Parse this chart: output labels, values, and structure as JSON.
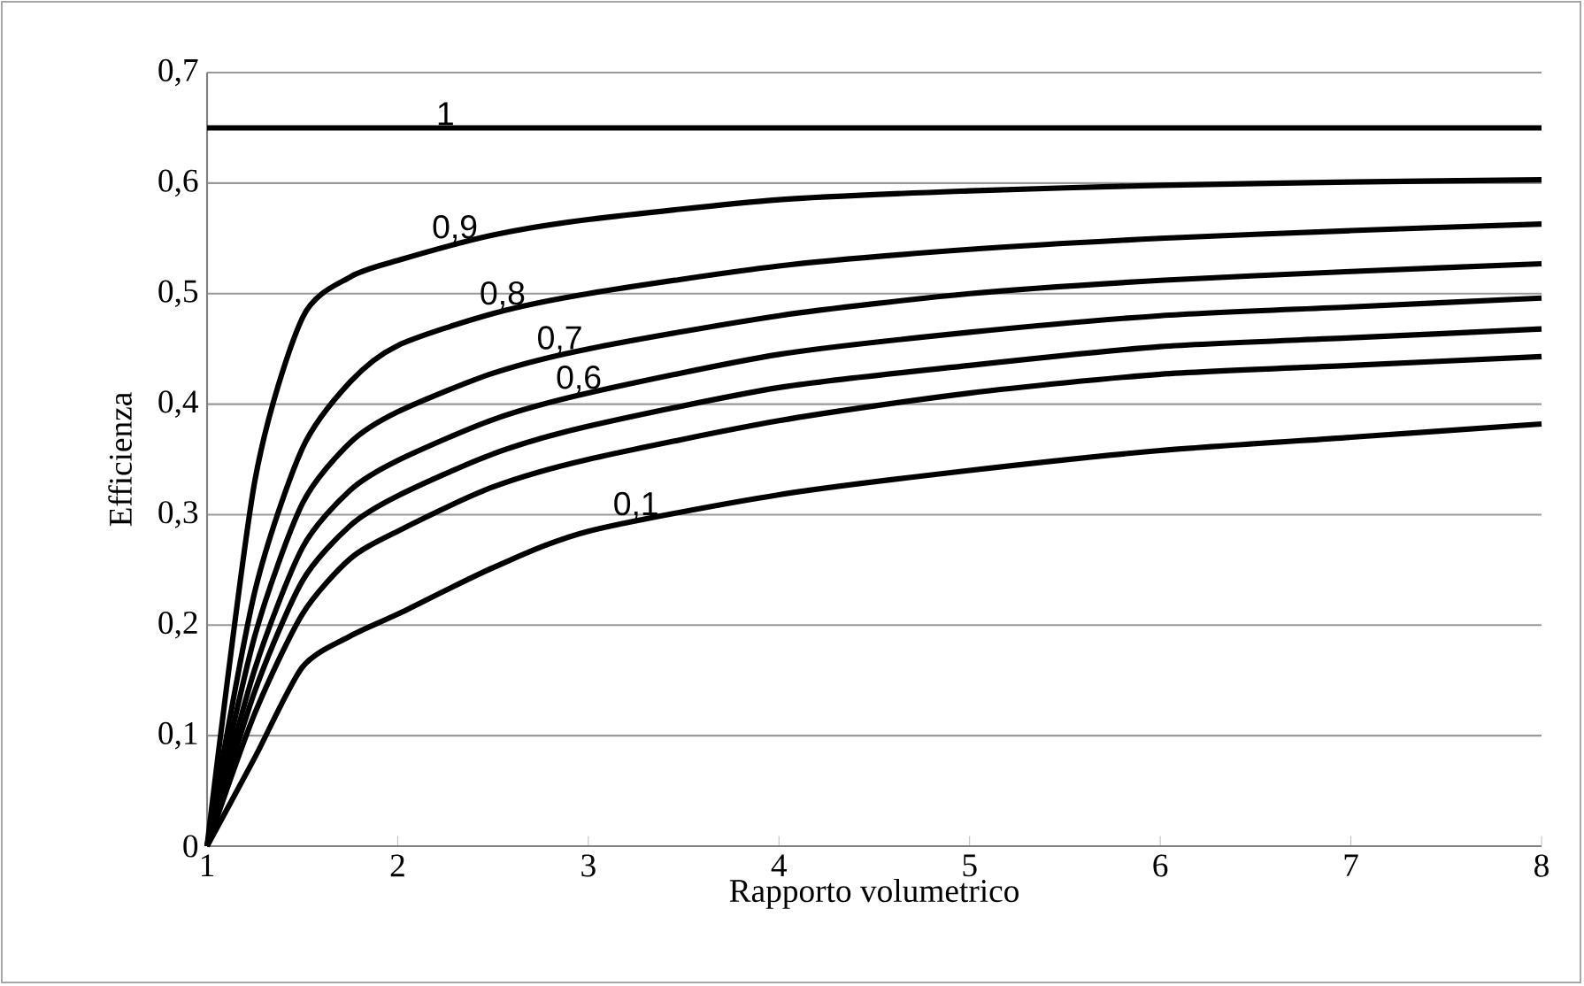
{
  "chart_data": {
    "type": "line",
    "xlabel": "Rapporto volumetrico",
    "ylabel": "Efficienza",
    "xlim": [
      1,
      8
    ],
    "ylim": [
      0,
      0.7
    ],
    "xticks": [
      1,
      2,
      3,
      4,
      5,
      6,
      7,
      8
    ],
    "yticks": [
      0,
      {
        "value": 0.1,
        "label": "0,1"
      },
      {
        "value": 0.2,
        "label": "0,2"
      },
      {
        "value": 0.3,
        "label": "0,3"
      },
      {
        "value": 0.4,
        "label": "0,4"
      },
      {
        "value": 0.5,
        "label": "0,5"
      },
      {
        "value": 0.6,
        "label": "0,6"
      },
      {
        "value": 0.7,
        "label": "0,7"
      }
    ],
    "grid": "y",
    "legend": false,
    "marker": "none",
    "line_style": "solid",
    "x": [
      1,
      1.25,
      1.5,
      1.75,
      2,
      2.5,
      3,
      4,
      5,
      6,
      7,
      8
    ],
    "series": [
      {
        "name": "1",
        "color": "#000000",
        "values": [
          0.65,
          0.65,
          0.65,
          0.65,
          0.65,
          0.65,
          0.65,
          0.65,
          0.65,
          0.65,
          0.65,
          0.65
        ]
      },
      {
        "name": "0,9",
        "color": "#000000",
        "values": [
          0,
          0.33,
          0.478,
          0.515,
          0.53,
          0.553,
          0.567,
          0.585,
          0.593,
          0.598,
          0.601,
          0.603
        ]
      },
      {
        "name": "0,8",
        "color": "#000000",
        "values": [
          0,
          0.23,
          0.36,
          0.42,
          0.453,
          0.482,
          0.5,
          0.525,
          0.54,
          0.55,
          0.557,
          0.563
        ]
      },
      {
        "name": "0,7",
        "color": "#000000",
        "values": [
          0,
          0.19,
          0.31,
          0.365,
          0.393,
          0.428,
          0.45,
          0.48,
          0.5,
          0.512,
          0.52,
          0.527
        ]
      },
      {
        "name": "0,6",
        "color": "#000000",
        "values": [
          0,
          0.16,
          0.27,
          0.322,
          0.349,
          0.386,
          0.41,
          0.445,
          0.465,
          0.48,
          0.488,
          0.496
        ]
      },
      {
        "color": "#000000",
        "values": [
          0,
          0.14,
          0.24,
          0.29,
          0.317,
          0.355,
          0.38,
          0.415,
          0.435,
          0.452,
          0.46,
          0.468
        ]
      },
      {
        "color": "#000000",
        "values": [
          0,
          0.12,
          0.21,
          0.26,
          0.285,
          0.325,
          0.35,
          0.385,
          0.41,
          0.427,
          0.435,
          0.443
        ]
      },
      {
        "name": "0,1",
        "color": "#000000",
        "values": [
          0,
          0.08,
          0.162,
          0.19,
          0.21,
          0.252,
          0.285,
          0.318,
          0.34,
          0.358,
          0.37,
          0.382
        ]
      }
    ]
  }
}
